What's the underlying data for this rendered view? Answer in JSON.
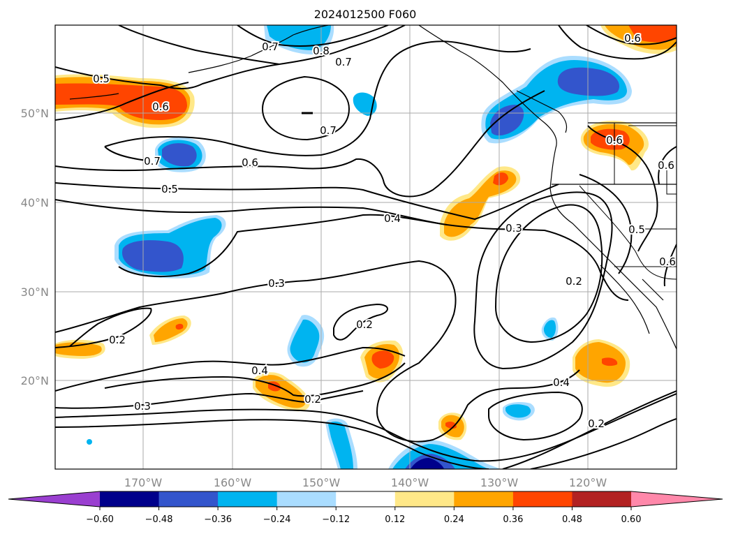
{
  "title": "2024012500 F060",
  "map": {
    "lat_labels": [
      "50°N",
      "40°N",
      "30°N",
      "20°N"
    ],
    "lon_labels": [
      "170°W",
      "160°W",
      "150°W",
      "140°W",
      "130°W",
      "120°W"
    ],
    "contour_labels": [
      "0.7",
      "0.8",
      "0.7",
      "0.5",
      "0.6",
      "0.7",
      "0.7",
      "0.6",
      "0.5",
      "0.4",
      "0.3",
      "0.3",
      "0.2",
      "0.2",
      "0.4",
      "0.2",
      "0.3",
      "0.2",
      "0.4",
      "0.2",
      "0.6",
      "0.6",
      "0.6",
      "0.5",
      "0.6"
    ]
  },
  "colorbar": {
    "ticks": [
      "−0.60",
      "−0.48",
      "−0.36",
      "−0.24",
      "−0.12",
      "0.12",
      "0.24",
      "0.36",
      "0.48",
      "0.60"
    ],
    "colors": [
      "#9a3fd0",
      "#00008b",
      "#3355cc",
      "#00b4f0",
      "#aaddff",
      "#ffffff",
      "#ffe888",
      "#ffa500",
      "#ff4500",
      "#b22222",
      "#ff88aa"
    ]
  },
  "colors": {
    "dark_blue": "#3355cc",
    "navy": "#00008b",
    "cyan": "#00b4f0",
    "light_blue": "#aaddff",
    "yellow": "#ffe888",
    "orange": "#ffa500",
    "red_orange": "#ff4500",
    "contour": "#000000",
    "grid": "#aaaaaa"
  }
}
